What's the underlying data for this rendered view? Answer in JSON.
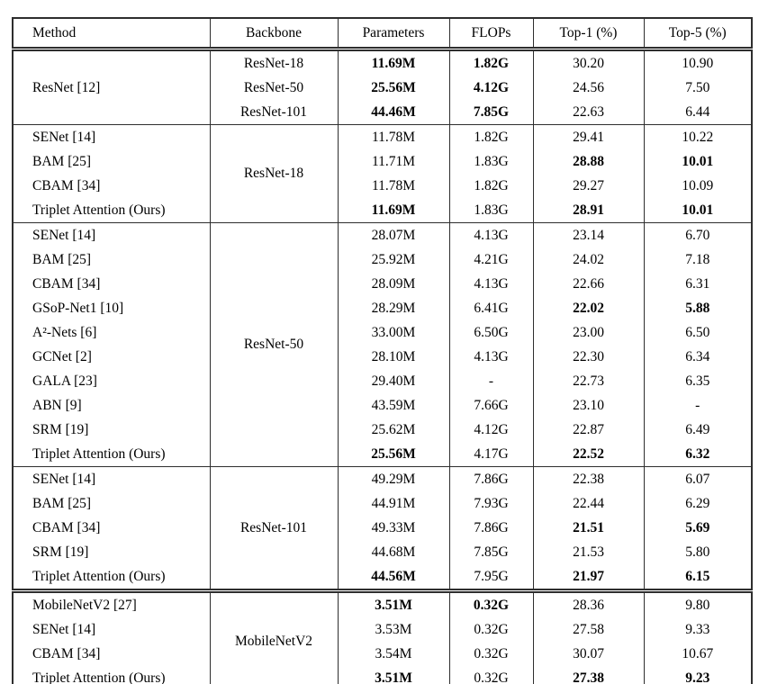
{
  "table": {
    "headers": [
      "Method",
      "Backbone",
      "Parameters",
      "FLOPs",
      "Top-1 (%)",
      "Top-5 (%)"
    ],
    "sections": [
      {
        "method": "ResNet [12]",
        "rows": [
          {
            "backbone": "ResNet-18",
            "params": "11.69M",
            "flops": "1.82G",
            "top1": "30.20",
            "top5": "10.90",
            "bold": [
              "params",
              "flops"
            ]
          },
          {
            "backbone": "ResNet-50",
            "params": "25.56M",
            "flops": "4.12G",
            "top1": "24.56",
            "top5": "7.50",
            "bold": [
              "params",
              "flops"
            ]
          },
          {
            "backbone": "ResNet-101",
            "params": "44.46M",
            "flops": "7.85G",
            "top1": "22.63",
            "top5": "6.44",
            "bold": [
              "params",
              "flops"
            ]
          }
        ]
      },
      {
        "backbone": "ResNet-18",
        "rows": [
          {
            "method": "SENet [14]",
            "params": "11.78M",
            "flops": "1.82G",
            "top1": "29.41",
            "top5": "10.22",
            "bold": []
          },
          {
            "method": "BAM [25]",
            "params": "11.71M",
            "flops": "1.83G",
            "top1": "28.88",
            "top5": "10.01",
            "bold": [
              "top1",
              "top5"
            ]
          },
          {
            "method": "CBAM [34]",
            "params": "11.78M",
            "flops": "1.82G",
            "top1": "29.27",
            "top5": "10.09",
            "bold": []
          },
          {
            "method": "Triplet Attention (Ours)",
            "params": "11.69M",
            "flops": "1.83G",
            "top1": "28.91",
            "top5": "10.01",
            "bold": [
              "params",
              "top1",
              "top5"
            ]
          }
        ]
      },
      {
        "backbone": "ResNet-50",
        "rows": [
          {
            "method": "SENet [14]",
            "params": "28.07M",
            "flops": "4.13G",
            "top1": "23.14",
            "top5": "6.70",
            "bold": []
          },
          {
            "method": "BAM [25]",
            "params": "25.92M",
            "flops": "4.21G",
            "top1": "24.02",
            "top5": "7.18",
            "bold": []
          },
          {
            "method": "CBAM [34]",
            "params": "28.09M",
            "flops": "4.13G",
            "top1": "22.66",
            "top5": "6.31",
            "bold": []
          },
          {
            "method": "GSoP-Net1 [10]",
            "params": "28.29M",
            "flops": "6.41G",
            "top1": "22.02",
            "top5": "5.88",
            "bold": [
              "top1",
              "top5"
            ]
          },
          {
            "method": "A²-Nets [6]",
            "params": "33.00M",
            "flops": "6.50G",
            "top1": "23.00",
            "top5": "6.50",
            "bold": []
          },
          {
            "method": "GCNet [2]",
            "params": "28.10M",
            "flops": "4.13G",
            "top1": "22.30",
            "top5": "6.34",
            "bold": []
          },
          {
            "method": "GALA [23]",
            "params": "29.40M",
            "flops": "-",
            "top1": "22.73",
            "top5": "6.35",
            "bold": []
          },
          {
            "method": "ABN [9]",
            "params": "43.59M",
            "flops": "7.66G",
            "top1": "23.10",
            "top5": "-",
            "bold": []
          },
          {
            "method": "SRM [19]",
            "params": "25.62M",
            "flops": "4.12G",
            "top1": "22.87",
            "top5": "6.49",
            "bold": []
          },
          {
            "method": "Triplet Attention (Ours)",
            "params": "25.56M",
            "flops": "4.17G",
            "top1": "22.52",
            "top5": "6.32",
            "bold": [
              "params",
              "top1",
              "top5"
            ]
          }
        ]
      },
      {
        "backbone": "ResNet-101",
        "rows": [
          {
            "method": "SENet [14]",
            "params": "49.29M",
            "flops": "7.86G",
            "top1": "22.38",
            "top5": "6.07",
            "bold": []
          },
          {
            "method": "BAM [25]",
            "params": "44.91M",
            "flops": "7.93G",
            "top1": "22.44",
            "top5": "6.29",
            "bold": []
          },
          {
            "method": "CBAM [34]",
            "params": "49.33M",
            "flops": "7.86G",
            "top1": "21.51",
            "top5": "5.69",
            "bold": [
              "top1",
              "top5"
            ]
          },
          {
            "method": "SRM [19]",
            "params": "44.68M",
            "flops": "7.85G",
            "top1": "21.53",
            "top5": "5.80",
            "bold": []
          },
          {
            "method": "Triplet Attention (Ours)",
            "params": "44.56M",
            "flops": "7.95G",
            "top1": "21.97",
            "top5": "6.15",
            "bold": [
              "params",
              "top1",
              "top5"
            ]
          }
        ]
      },
      {
        "backbone": "MobileNetV2",
        "rows": [
          {
            "method": "MobileNetV2 [27]",
            "params": "3.51M",
            "flops": "0.32G",
            "top1": "28.36",
            "top5": "9.80",
            "bold": [
              "params",
              "flops"
            ]
          },
          {
            "method": "SENet [14]",
            "params": "3.53M",
            "flops": "0.32G",
            "top1": "27.58",
            "top5": "9.33",
            "bold": []
          },
          {
            "method": "CBAM [34]",
            "params": "3.54M",
            "flops": "0.32G",
            "top1": "30.07",
            "top5": "10.67",
            "bold": []
          },
          {
            "method": "Triplet Attention (Ours)",
            "params": "3.51M",
            "flops": "0.32G",
            "top1": "27.38",
            "top5": "9.23",
            "bold": [
              "params",
              "top1",
              "top5"
            ]
          }
        ]
      }
    ]
  }
}
